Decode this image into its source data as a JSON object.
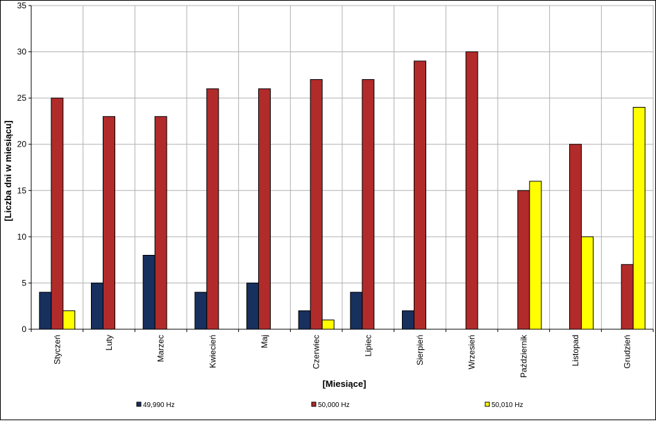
{
  "chart_data": {
    "type": "bar",
    "categories": [
      "Styczeń",
      "Luty",
      "Marzec",
      "Kwiecień",
      "Maj",
      "Czerwiec",
      "Lipiec",
      "Sierpień",
      "Wrzesień",
      "Październik",
      "Listopad",
      "Grudzień"
    ],
    "series": [
      {
        "name": "49,990 Hz",
        "color": "#17305e",
        "values": [
          4,
          5,
          8,
          4,
          5,
          2,
          4,
          2,
          0,
          0,
          0,
          0
        ]
      },
      {
        "name": "50,000 Hz",
        "color": "#b22b2b",
        "values": [
          25,
          23,
          23,
          26,
          26,
          27,
          27,
          29,
          30,
          15,
          20,
          7
        ]
      },
      {
        "name": "50,010 Hz",
        "color": "#ffff00",
        "values": [
          2,
          0,
          0,
          0,
          0,
          1,
          0,
          0,
          0,
          16,
          10,
          24
        ]
      }
    ],
    "title": "",
    "xlabel": "[Miesiące]",
    "ylabel": "[Liczba dni w miesiącu]",
    "ylim": [
      0,
      35
    ],
    "yticks": [
      0,
      5,
      10,
      15,
      20,
      25,
      30,
      35
    ],
    "grid": true,
    "legend": "bottom"
  }
}
